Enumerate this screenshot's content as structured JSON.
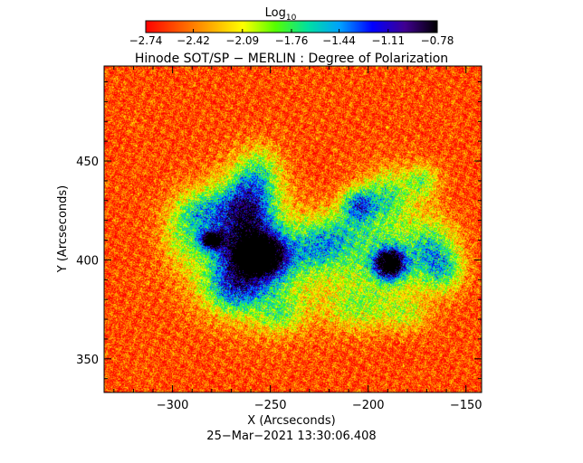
{
  "chart_data": {
    "type": "heatmap",
    "title": "Hinode SOT/SP − MERLIN : Degree of Polarization",
    "xlabel": "X (Arcseconds)",
    "ylabel": "Y (Arcseconds)",
    "xlim": [
      -335,
      -142
    ],
    "ylim": [
      333,
      498
    ],
    "x_ticks": [
      -300,
      -250,
      -200,
      -150
    ],
    "x_tick_labels": [
      "−300",
      "−250",
      "−200",
      "−150"
    ],
    "y_ticks": [
      350,
      400,
      450
    ],
    "y_tick_labels": [
      "350",
      "400",
      "450"
    ],
    "footer": "25−Mar−2021 13:30:06.408",
    "colorbar": {
      "label_main": "Log",
      "label_sub": "10",
      "range": [
        -2.74,
        -0.78
      ],
      "ticks": [
        -2.74,
        -2.42,
        -2.09,
        -1.76,
        -1.44,
        -1.11,
        -0.78
      ],
      "tick_labels": [
        "−2.74",
        "−2.42",
        "−2.09",
        "−1.76",
        "−1.44",
        "−1.11",
        "−0.78"
      ],
      "colors": [
        "#ff0000",
        "#ff5500",
        "#ffaa00",
        "#ffff00",
        "#55ff00",
        "#00e0a0",
        "#00a0ff",
        "#0000ff",
        "#400090",
        "#000000"
      ]
    },
    "background_level": -2.55,
    "features": [
      {
        "x": -255,
        "y": 402,
        "sx": 9,
        "sy": 7,
        "amp": 1.8
      },
      {
        "x": -265,
        "y": 410,
        "sx": 15,
        "sy": 18,
        "amp": 1.0
      },
      {
        "x": -250,
        "y": 395,
        "sx": 25,
        "sy": 18,
        "amp": 0.55
      },
      {
        "x": -262,
        "y": 428,
        "sx": 9,
        "sy": 12,
        "amp": 0.9
      },
      {
        "x": -280,
        "y": 410,
        "sx": 4,
        "sy": 3,
        "amp": 1.5
      },
      {
        "x": -285,
        "y": 425,
        "sx": 10,
        "sy": 8,
        "amp": 0.6
      },
      {
        "x": -295,
        "y": 412,
        "sx": 8,
        "sy": 10,
        "amp": 0.4
      },
      {
        "x": -268,
        "y": 385,
        "sx": 10,
        "sy": 8,
        "amp": 0.7
      },
      {
        "x": -225,
        "y": 405,
        "sx": 10,
        "sy": 8,
        "amp": 0.55
      },
      {
        "x": -255,
        "y": 445,
        "sx": 8,
        "sy": 10,
        "amp": 0.5
      },
      {
        "x": -245,
        "y": 372,
        "sx": 8,
        "sy": 7,
        "amp": 0.45
      },
      {
        "x": -189,
        "y": 398,
        "sx": 5,
        "sy": 5,
        "amp": 1.9
      },
      {
        "x": -192,
        "y": 400,
        "sx": 16,
        "sy": 14,
        "amp": 0.7
      },
      {
        "x": -190,
        "y": 432,
        "sx": 9,
        "sy": 10,
        "amp": 0.75
      },
      {
        "x": -205,
        "y": 428,
        "sx": 6,
        "sy": 6,
        "amp": 1.0
      },
      {
        "x": -168,
        "y": 405,
        "sx": 9,
        "sy": 12,
        "amp": 0.7
      },
      {
        "x": -160,
        "y": 395,
        "sx": 7,
        "sy": 8,
        "amp": 0.55
      },
      {
        "x": -215,
        "y": 415,
        "sx": 12,
        "sy": 8,
        "amp": 0.5
      },
      {
        "x": -205,
        "y": 375,
        "sx": 12,
        "sy": 8,
        "amp": 0.45
      },
      {
        "x": -172,
        "y": 440,
        "sx": 6,
        "sy": 6,
        "amp": 0.6
      },
      {
        "x": -180,
        "y": 372,
        "sx": 8,
        "sy": 6,
        "amp": 0.4
      }
    ]
  }
}
